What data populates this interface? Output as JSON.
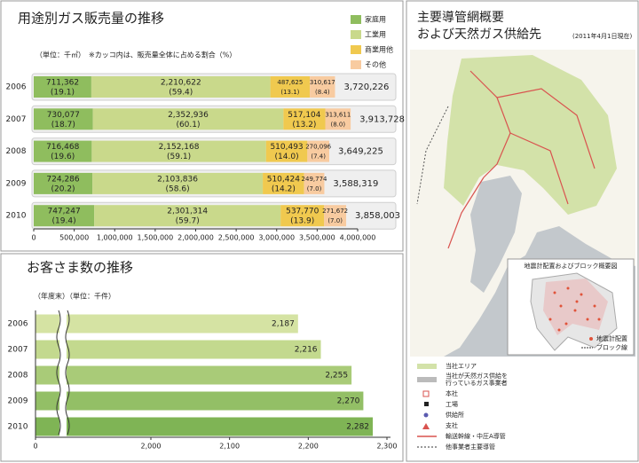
{
  "chart_data": [
    {
      "type": "stacked-bar",
      "title": "用途別ガス販売量の推移",
      "unit": "（単位：千㎥）",
      "note": "※カッコ内は、販売量全体に占める割合（%）",
      "categories": [
        "2006",
        "2007",
        "2008",
        "2009",
        "2010"
      ],
      "series": [
        {
          "name": "家庭用",
          "color": "#8fbd5e",
          "values": [
            711362,
            730077,
            716468,
            724286,
            747247
          ],
          "value_labels": [
            "711,362",
            "730,077",
            "716,468",
            "724,286",
            "747,247"
          ],
          "share_labels": [
            "(19.1)",
            "(18.7)",
            "(19.6)",
            "(20.2)",
            "(19.4)"
          ]
        },
        {
          "name": "工業用",
          "color": "#c9d98b",
          "values": [
            2210622,
            2352936,
            2152168,
            2103836,
            2301314
          ],
          "value_labels": [
            "2,210,622",
            "2,352,936",
            "2,152,168",
            "2,103,836",
            "2,301,314"
          ],
          "share_labels": [
            "(59.4)",
            "(60.1)",
            "(59.1)",
            "(58.6)",
            "(59.7)"
          ]
        },
        {
          "name": "商業用他",
          "color": "#f0c94f",
          "values": [
            487625,
            517104,
            510493,
            510424,
            537770
          ],
          "value_labels": [
            "487,625",
            "517,104",
            "510,493",
            "510,424",
            "537,770"
          ],
          "share_labels": [
            "(13.1)",
            "(13.2)",
            "(14.0)",
            "(14.2)",
            "(13.9)"
          ]
        },
        {
          "name": "その他",
          "color": "#f8cba0",
          "values": [
            310617,
            313611,
            270096,
            249774,
            271672
          ],
          "value_labels": [
            "310,617",
            "313,611",
            "270,096",
            "249,774",
            "271,672"
          ],
          "share_labels": [
            "(8.4)",
            "(8.0)",
            "(7.4)",
            "(7.0)",
            "(7.0)"
          ]
        }
      ],
      "totals": [
        3720226,
        3913728,
        3649225,
        3588319,
        3858003
      ],
      "total_labels": [
        "3,720,226",
        "3,913,728",
        "3,649,225",
        "3,588,319",
        "3,858,003"
      ],
      "xlim": [
        0,
        4000000
      ],
      "xticks": [
        0,
        {
          "value": 500000,
          "label": "500,000"
        },
        {
          "value": 1000000,
          "label": "1,000,000"
        },
        {
          "value": 1500000,
          "label": "1,500,000"
        },
        {
          "value": 2000000,
          "label": "2,000,000"
        },
        {
          "value": 2500000,
          "label": "2,500,000"
        },
        {
          "value": 3000000,
          "label": "3,000,000"
        },
        {
          "value": 3500000,
          "label": "3,500,000"
        },
        {
          "value": 4000000,
          "label": "4,000,000"
        }
      ],
      "legend": "upper right"
    },
    {
      "type": "bar",
      "title": "お客さま数の推移",
      "unit": "（年度末）（単位：千件）",
      "categories": [
        "2006",
        "2007",
        "2008",
        "2009",
        "2010"
      ],
      "values": [
        2187,
        2216,
        2255,
        2270,
        2282
      ],
      "value_labels": [
        "2,187",
        "2,216",
        "2,255",
        "2,270",
        "2,282"
      ],
      "colors": [
        "#d5e3a3",
        "#c3d98e",
        "#a9cb78",
        "#93bf66",
        "#7fb455"
      ],
      "xlim": [
        0,
        2300
      ],
      "axis_break": [
        0,
        2000
      ],
      "xticks": [
        0,
        {
          "value": 2000,
          "label": "2,000"
        },
        {
          "value": 2100,
          "label": "2,100"
        },
        {
          "value": 2200,
          "label": "2,200"
        },
        {
          "value": 2300,
          "label": "2,300"
        }
      ]
    }
  ],
  "map": {
    "title": [
      "主要導管網概要",
      "および天然ガス供給先"
    ],
    "date": "(2011年4月1日現在)",
    "legend": [
      "当社エリア",
      [
        "当社が天然ガス供給を",
        "行っているガス事業者"
      ],
      "本社",
      "工場",
      "供給所",
      "支社",
      "輸送幹線・中圧A導管",
      "他事業者主要導管"
    ],
    "inset": {
      "title": "地震計配置およびブロック概要図",
      "legend": [
        "地震計配置",
        "ブロック線"
      ]
    }
  }
}
